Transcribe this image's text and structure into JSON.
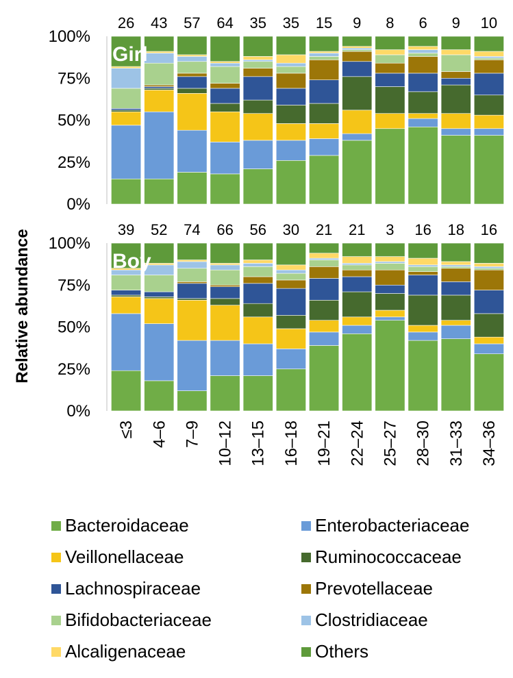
{
  "chart_data": {
    "type": "bar",
    "stacked": true,
    "normalized": true,
    "ylabel": "Relative abundance",
    "yticks": [
      "0%",
      "25%",
      "50%",
      "75%",
      "100%"
    ],
    "ylim": [
      0,
      1
    ],
    "categories": [
      "≤3",
      "4–6",
      "7–9",
      "10–12",
      "13–15",
      "16–18",
      "19–21",
      "22–24",
      "25–27",
      "28–30",
      "31–33",
      "34–36"
    ],
    "legend_position": "bottom",
    "families": [
      {
        "name": "Bacteroidaceae",
        "color": "#70AD47"
      },
      {
        "name": "Enterobacteriaceae",
        "color": "#6A9BD8"
      },
      {
        "name": "Veillonellaceae",
        "color": "#F5C518"
      },
      {
        "name": "Ruminococcaceae",
        "color": "#466A2E"
      },
      {
        "name": "Lachnospiraceae",
        "color": "#2F5597"
      },
      {
        "name": "Prevotellaceae",
        "color": "#9C7608"
      },
      {
        "name": "Bifidobacteriaceae",
        "color": "#A9D18E"
      },
      {
        "name": "Clostridiaceae",
        "color": "#9DC3E6"
      },
      {
        "name": "Alcaligenaceae",
        "color": "#FFD966"
      },
      {
        "name": "Others",
        "color": "#5E9A3A"
      }
    ],
    "panels": [
      {
        "title": "Girl",
        "counts": [
          "26",
          "43",
          "57",
          "64",
          "35",
          "35",
          "15",
          "9",
          "8",
          "6",
          "9",
          "10"
        ],
        "series": [
          {
            "name": "Bacteroidaceae",
            "values": [
              0.15,
              0.15,
              0.19,
              0.18,
              0.21,
              0.26,
              0.29,
              0.38,
              0.45,
              0.46,
              0.41,
              0.41
            ]
          },
          {
            "name": "Enterobacteriaceae",
            "values": [
              0.32,
              0.4,
              0.25,
              0.19,
              0.17,
              0.12,
              0.1,
              0.04,
              0.0,
              0.05,
              0.04,
              0.04
            ]
          },
          {
            "name": "Veillonellaceae",
            "values": [
              0.08,
              0.13,
              0.22,
              0.18,
              0.16,
              0.1,
              0.09,
              0.14,
              0.09,
              0.03,
              0.09,
              0.08
            ]
          },
          {
            "name": "Ruminococcaceae",
            "values": [
              0.01,
              0.01,
              0.03,
              0.05,
              0.08,
              0.11,
              0.12,
              0.2,
              0.16,
              0.13,
              0.17,
              0.12
            ]
          },
          {
            "name": "Lachnospiraceae",
            "values": [
              0.01,
              0.01,
              0.07,
              0.09,
              0.14,
              0.1,
              0.14,
              0.09,
              0.08,
              0.11,
              0.04,
              0.13
            ]
          },
          {
            "name": "Prevotellaceae",
            "values": [
              0.0,
              0.01,
              0.02,
              0.03,
              0.05,
              0.09,
              0.12,
              0.06,
              0.06,
              0.1,
              0.04,
              0.08
            ]
          },
          {
            "name": "Bifidobacteriaceae",
            "values": [
              0.12,
              0.13,
              0.07,
              0.1,
              0.04,
              0.04,
              0.02,
              0.01,
              0.05,
              0.02,
              0.1,
              0.01
            ]
          },
          {
            "name": "Clostridiaceae",
            "values": [
              0.12,
              0.06,
              0.03,
              0.02,
              0.01,
              0.02,
              0.02,
              0.01,
              0.0,
              0.02,
              0.0,
              0.01
            ]
          },
          {
            "name": "Alcaligenaceae",
            "values": [
              0.01,
              0.01,
              0.01,
              0.01,
              0.02,
              0.05,
              0.01,
              0.01,
              0.03,
              0.02,
              0.03,
              0.03
            ]
          },
          {
            "name": "Others",
            "values": [
              0.18,
              0.09,
              0.11,
              0.15,
              0.12,
              0.11,
              0.09,
              0.06,
              0.08,
              0.06,
              0.08,
              0.09
            ]
          }
        ]
      },
      {
        "title": "Boy",
        "counts": [
          "39",
          "52",
          "74",
          "66",
          "56",
          "30",
          "21",
          "21",
          "3",
          "16",
          "18",
          "16"
        ],
        "series": [
          {
            "name": "Bacteroidaceae",
            "values": [
              0.24,
              0.18,
              0.12,
              0.21,
              0.21,
              0.25,
              0.39,
              0.46,
              0.54,
              0.42,
              0.43,
              0.34
            ]
          },
          {
            "name": "Enterobacteriaceae",
            "values": [
              0.34,
              0.34,
              0.3,
              0.21,
              0.19,
              0.12,
              0.08,
              0.05,
              0.02,
              0.05,
              0.08,
              0.06
            ]
          },
          {
            "name": "Veillonellaceae",
            "values": [
              0.1,
              0.15,
              0.24,
              0.21,
              0.16,
              0.12,
              0.07,
              0.05,
              0.04,
              0.04,
              0.03,
              0.04
            ]
          },
          {
            "name": "Ruminococcaceae",
            "values": [
              0.01,
              0.01,
              0.01,
              0.04,
              0.08,
              0.08,
              0.12,
              0.15,
              0.1,
              0.18,
              0.15,
              0.14
            ]
          },
          {
            "name": "Lachnospiraceae",
            "values": [
              0.03,
              0.03,
              0.09,
              0.07,
              0.12,
              0.16,
              0.13,
              0.09,
              0.05,
              0.12,
              0.08,
              0.14
            ]
          },
          {
            "name": "Prevotellaceae",
            "values": [
              0.0,
              0.0,
              0.01,
              0.01,
              0.04,
              0.05,
              0.07,
              0.04,
              0.09,
              0.02,
              0.08,
              0.12
            ]
          },
          {
            "name": "Bifidobacteriaceae",
            "values": [
              0.09,
              0.1,
              0.08,
              0.09,
              0.06,
              0.04,
              0.04,
              0.03,
              0.04,
              0.03,
              0.01,
              0.01
            ]
          },
          {
            "name": "Clostridiaceae",
            "values": [
              0.03,
              0.06,
              0.04,
              0.03,
              0.02,
              0.02,
              0.01,
              0.01,
              0.01,
              0.01,
              0.01,
              0.01
            ]
          },
          {
            "name": "Alcaligenaceae",
            "values": [
              0.01,
              0.01,
              0.01,
              0.01,
              0.02,
              0.03,
              0.03,
              0.04,
              0.03,
              0.04,
              0.02,
              0.02
            ]
          },
          {
            "name": "Others",
            "values": [
              0.15,
              0.12,
              0.1,
              0.12,
              0.1,
              0.13,
              0.06,
              0.08,
              0.08,
              0.09,
              0.11,
              0.12
            ]
          }
        ]
      }
    ]
  }
}
